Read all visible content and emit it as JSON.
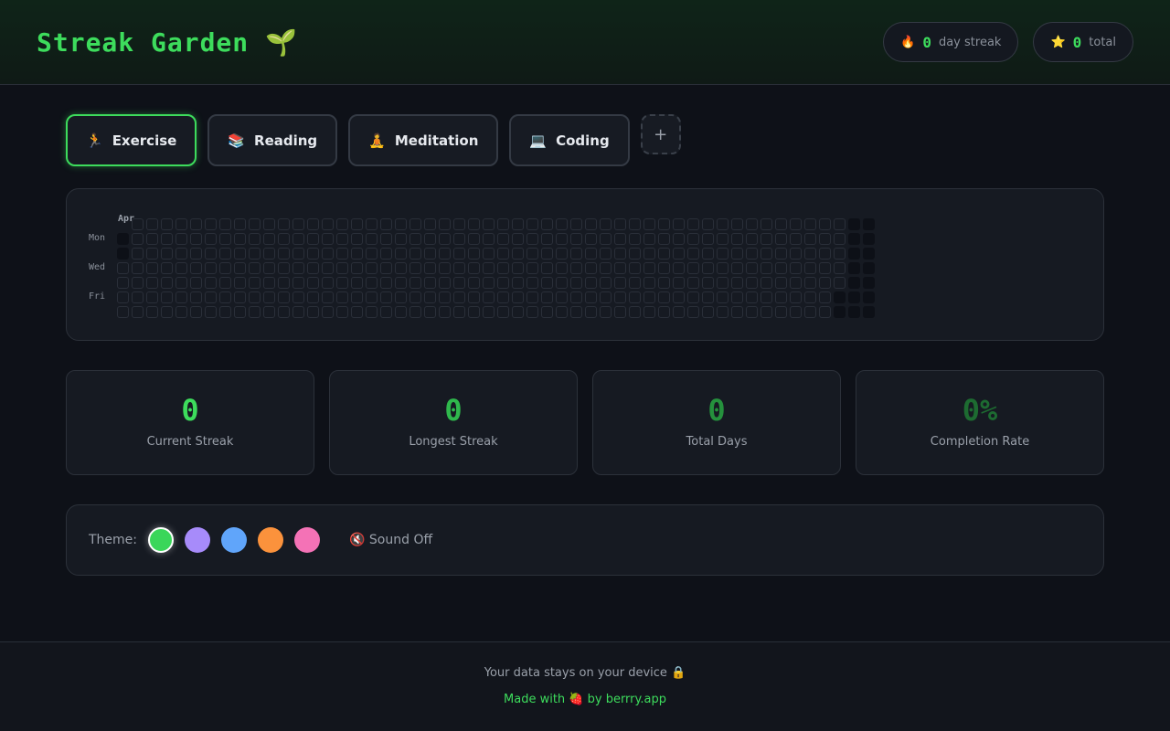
{
  "header": {
    "title": "Streak Garden",
    "title_icon": "🌱",
    "streak_icon": "🔥",
    "streak_value": "0",
    "streak_label": "day streak",
    "total_icon": "⭐",
    "total_value": "0",
    "total_label": "total"
  },
  "tabs": [
    {
      "icon": "🏃",
      "label": "Exercise",
      "active": true
    },
    {
      "icon": "📚",
      "label": "Reading"
    },
    {
      "icon": "🧘",
      "label": "Meditation"
    },
    {
      "icon": "💻",
      "label": "Coding"
    }
  ],
  "add_label": "+",
  "heatmap": {
    "month_label": "Apr",
    "day_labels": [
      "Mon",
      "Wed",
      "Fri"
    ],
    "weeks": 52,
    "completed_days": 0
  },
  "stats": [
    {
      "value": "0",
      "label": "Current Streak",
      "color": "#3ddc5c"
    },
    {
      "value": "0",
      "label": "Longest Streak",
      "color": "#2fb84c"
    },
    {
      "value": "0",
      "label": "Total Days",
      "color": "#25913d"
    },
    {
      "value": "0%",
      "label": "Completion Rate",
      "color": "#1d6b31"
    }
  ],
  "theme": {
    "label": "Theme:",
    "colors": [
      "#3ad65a",
      "#a78bfa",
      "#60a5fa",
      "#fb923c",
      "#f472b6"
    ],
    "selected": 0,
    "sound_icon": "🔇",
    "sound_label": "Sound Off"
  },
  "footer": {
    "privacy": "Your data stays on your device 🔒",
    "made": "Made with 🍓 by berrry.app"
  }
}
